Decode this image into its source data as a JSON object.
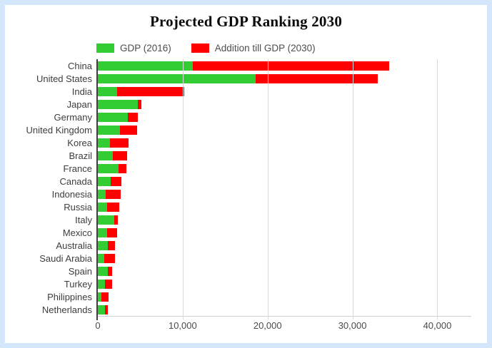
{
  "window": {
    "background_color": "#ffffff",
    "frame_color": "#d3e6fa"
  },
  "chart_data": {
    "type": "bar",
    "orientation": "horizontal",
    "stacked": true,
    "title": "Projected GDP Ranking 2030",
    "legend_position": "top",
    "grid": true,
    "categories": [
      "China",
      "United States",
      "India",
      "Japan",
      "Germany",
      "United Kingdom",
      "Korea",
      "Brazil",
      "France",
      "Canada",
      "Indonesia",
      "Russia",
      "Italy",
      "Mexico",
      "Australia",
      "Saudi Arabia",
      "Spain",
      "Turkey",
      "Philippines",
      "Netherlands"
    ],
    "series": [
      {
        "name": "GDP (2016)",
        "color": "#33cc33",
        "values": [
          11200,
          18600,
          2300,
          4750,
          3500,
          2650,
          1450,
          1800,
          2450,
          1550,
          950,
          1100,
          1900,
          1100,
          1150,
          750,
          1200,
          800,
          450,
          850
        ]
      },
      {
        "name": "Addition till GDP (2030)",
        "color": "#ff0000",
        "values": [
          23100,
          14400,
          7900,
          400,
          1200,
          2000,
          2150,
          1650,
          900,
          1250,
          1750,
          1450,
          450,
          1200,
          850,
          1230,
          500,
          850,
          820,
          340
        ]
      }
    ],
    "projected_totals_2030": [
      34300,
      33000,
      10200,
      5150,
      4700,
      4650,
      3600,
      3450,
      3350,
      2800,
      2700,
      2550,
      2350,
      2300,
      2000,
      1980,
      1700,
      1650,
      1270,
      1190
    ],
    "x_axis": {
      "tick_labels": [
        "0",
        "10,000",
        "20,000",
        "30,000",
        "40,000"
      ],
      "tick_values": [
        0,
        10000,
        20000,
        30000,
        40000
      ],
      "max": 44000
    },
    "colors": {
      "gridline": "#d9d9d9",
      "y_axis_line": "#3f3f3f",
      "label_text": "#3d3d3d"
    }
  }
}
